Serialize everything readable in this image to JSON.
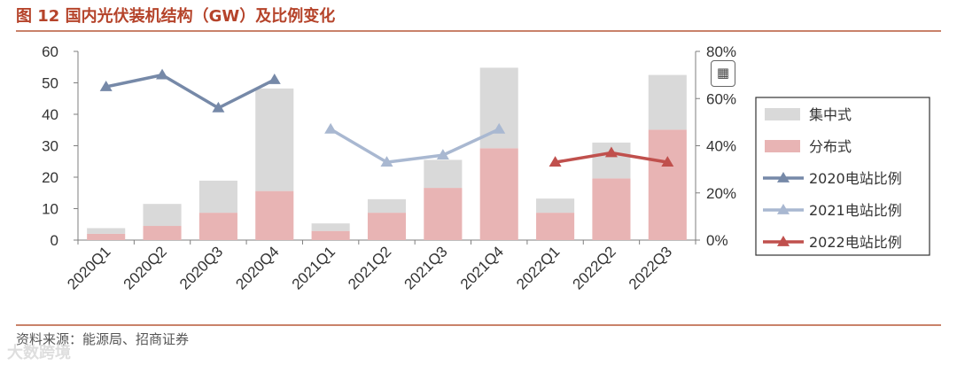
{
  "figure": {
    "title": "图 12  国内光伏装机结构（GW）及比例变化",
    "source": "资料来源：能源局、招商证券",
    "watermark": "大数跨境"
  },
  "icons": {
    "toolbar": "calculator-icon"
  },
  "colors": {
    "centralized": "#d9d9d9",
    "distributed": "#e8b4b4",
    "line2020": "#7689a8",
    "line2021": "#a9b8d1",
    "line2022": "#c0504d",
    "axis": "#7f7f7f",
    "grid": "#d9d9d9",
    "title": "#b5432a"
  },
  "chart_data": {
    "type": "bar",
    "stacked": true,
    "categories": [
      "2020Q1",
      "2020Q2",
      "2020Q3",
      "2020Q4",
      "2021Q1",
      "2021Q2",
      "2021Q3",
      "2021Q4",
      "2022Q1",
      "2022Q2",
      "2022Q3"
    ],
    "series": [
      {
        "name": "集中式",
        "values": [
          1.8,
          7.0,
          10.2,
          32.6,
          2.4,
          4.3,
          8.9,
          25.6,
          4.5,
          11.4,
          17.4
        ],
        "axis": "left"
      },
      {
        "name": "分布式",
        "values": [
          2.0,
          4.5,
          8.7,
          15.6,
          2.9,
          8.7,
          16.6,
          29.2,
          8.7,
          19.6,
          35.1
        ],
        "axis": "left"
      }
    ],
    "lines": [
      {
        "name": "2020电站比例",
        "x": [
          "2020Q1",
          "2020Q2",
          "2020Q3",
          "2020Q4"
        ],
        "values": [
          65,
          70,
          56,
          68
        ],
        "axis": "right"
      },
      {
        "name": "2021电站比例",
        "x": [
          "2021Q1",
          "2021Q2",
          "2021Q3",
          "2021Q4"
        ],
        "values": [
          47,
          33,
          36,
          47
        ],
        "axis": "right"
      },
      {
        "name": "2022电站比例",
        "x": [
          "2022Q1",
          "2022Q2",
          "2022Q3"
        ],
        "values": [
          33,
          37,
          33
        ],
        "axis": "right"
      }
    ],
    "y_left": {
      "ticks": [
        "0",
        "10",
        "20",
        "30",
        "40",
        "50",
        "60"
      ],
      "ylim": [
        0,
        60
      ]
    },
    "y_right": {
      "ticks": [
        "0%",
        "20%",
        "40%",
        "60%",
        "80%"
      ],
      "ylim": [
        0,
        80
      ]
    },
    "legend": {
      "placement": "right",
      "items": [
        "集中式",
        "分布式",
        "2020电站比例",
        "2021电站比例",
        "2022电站比例"
      ]
    },
    "grid": false
  }
}
